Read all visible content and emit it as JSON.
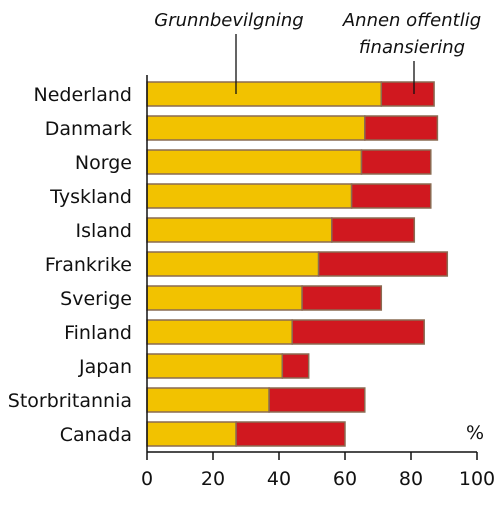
{
  "chart_data": {
    "type": "bar",
    "stacked": true,
    "orientation": "horizontal",
    "categories": [
      "Nederland",
      "Danmark",
      "Norge",
      "Tyskland",
      "Island",
      "Frankrike",
      "Sverige",
      "Finland",
      "Japan",
      "Storbritannia",
      "Canada"
    ],
    "series": [
      {
        "name": "Grunnbevilgning",
        "color": "#f2c200",
        "values": [
          71,
          66,
          65,
          62,
          56,
          52,
          47,
          44,
          41,
          37,
          27
        ]
      },
      {
        "name": "Annen offentlig finansiering",
        "color": "#d0181f",
        "values": [
          16,
          22,
          21,
          24,
          25,
          39,
          24,
          40,
          8,
          29,
          33
        ]
      }
    ],
    "legend_labels": {
      "grunnbevilgning": "Grunnbevilgning",
      "annen_line1": "Annen offentlig",
      "annen_line2": "finansiering"
    },
    "unit_label": "%",
    "xlim": [
      0,
      100
    ],
    "xticks": [
      "0",
      "20",
      "40",
      "60",
      "80",
      "100"
    ],
    "grid": false,
    "bar_outline_color": "#8a6b52"
  }
}
